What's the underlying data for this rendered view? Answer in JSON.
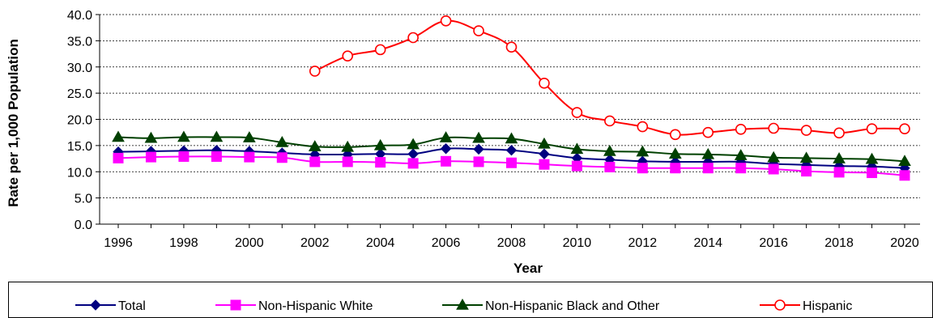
{
  "chart_data": {
    "type": "line",
    "xlabel": "Year",
    "ylabel": "Rate per 1,000 Population",
    "ylim": [
      0,
      40
    ],
    "yticks": [
      "0.0",
      "5.0",
      "10.0",
      "15.0",
      "20.0",
      "25.0",
      "30.0",
      "35.0",
      "40.0"
    ],
    "xlim": [
      1996,
      2020
    ],
    "xticks": [
      "1996",
      "1998",
      "2000",
      "2002",
      "2004",
      "2006",
      "2008",
      "2010",
      "2012",
      "2014",
      "2016",
      "2018",
      "2020"
    ],
    "grid": "horizontal dashed",
    "legend_position": "bottom",
    "series": [
      {
        "name": "Total",
        "color": "#000080",
        "marker": "diamond",
        "x": [
          1996,
          1997,
          1998,
          1999,
          2000,
          2001,
          2002,
          2003,
          2004,
          2005,
          2006,
          2007,
          2008,
          2009,
          2010,
          2011,
          2012,
          2013,
          2014,
          2015,
          2016,
          2017,
          2018,
          2019,
          2020
        ],
        "values": [
          13.8,
          13.9,
          14.0,
          14.1,
          13.9,
          13.6,
          13.3,
          13.3,
          13.4,
          13.4,
          14.4,
          14.3,
          14.1,
          13.4,
          12.6,
          12.3,
          12.0,
          11.9,
          11.9,
          11.9,
          11.5,
          11.3,
          11.1,
          11.0,
          10.7
        ]
      },
      {
        "name": "Non-Hispanic White",
        "color": "#ff00ff",
        "marker": "square",
        "x": [
          1996,
          1997,
          1998,
          1999,
          2000,
          2001,
          2002,
          2003,
          2004,
          2005,
          2006,
          2007,
          2008,
          2009,
          2010,
          2011,
          2012,
          2013,
          2014,
          2015,
          2016,
          2017,
          2018,
          2019,
          2020
        ],
        "values": [
          12.6,
          12.8,
          12.9,
          12.9,
          12.8,
          12.7,
          11.9,
          11.9,
          11.8,
          11.6,
          12.0,
          11.9,
          11.7,
          11.4,
          11.1,
          10.9,
          10.7,
          10.7,
          10.7,
          10.7,
          10.5,
          10.1,
          9.9,
          9.8,
          9.3
        ]
      },
      {
        "name": "Non-Hispanic Black and Other",
        "color": "#004000",
        "marker": "triangle",
        "x": [
          1996,
          1997,
          1998,
          1999,
          2000,
          2001,
          2002,
          2003,
          2004,
          2005,
          2006,
          2007,
          2008,
          2009,
          2010,
          2011,
          2012,
          2013,
          2014,
          2015,
          2016,
          2017,
          2018,
          2019,
          2020
        ],
        "values": [
          16.6,
          16.4,
          16.6,
          16.6,
          16.5,
          15.6,
          14.8,
          14.7,
          15.0,
          15.2,
          16.5,
          16.4,
          16.3,
          15.3,
          14.3,
          13.9,
          13.8,
          13.4,
          13.3,
          13.1,
          12.7,
          12.6,
          12.5,
          12.4,
          12.0
        ]
      },
      {
        "name": "Hispanic",
        "color": "#ff0000",
        "marker": "circle",
        "x": [
          2002,
          2003,
          2004,
          2005,
          2006,
          2007,
          2008,
          2009,
          2010,
          2011,
          2012,
          2013,
          2014,
          2015,
          2016,
          2017,
          2018,
          2019,
          2020
        ],
        "values": [
          29.2,
          32.1,
          33.3,
          35.6,
          38.8,
          36.9,
          33.8,
          26.9,
          21.3,
          19.7,
          18.6,
          17.1,
          17.5,
          18.1,
          18.3,
          17.9,
          17.4,
          18.2,
          18.2
        ]
      }
    ]
  }
}
